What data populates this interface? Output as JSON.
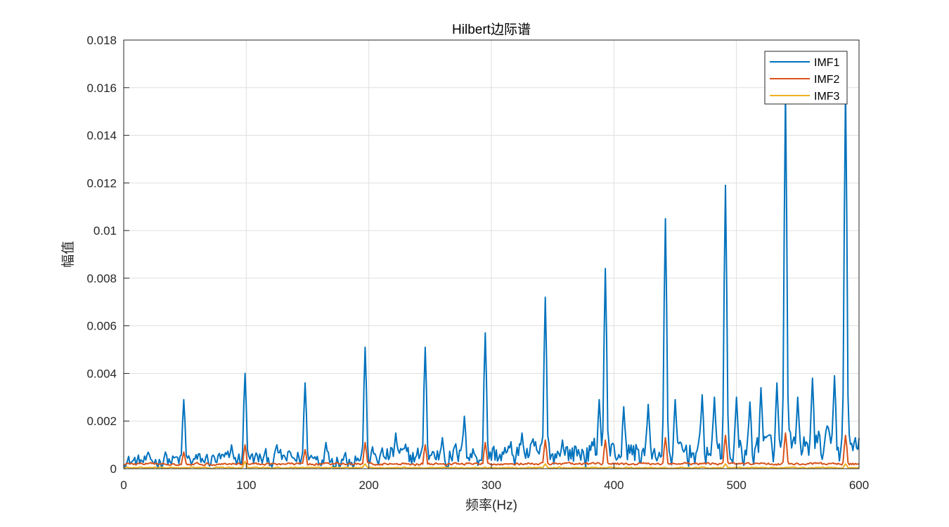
{
  "chart_data": {
    "type": "line",
    "title": "Hilbert边际谱",
    "xlabel": "频率(Hz)",
    "ylabel": "幅值",
    "xlim": [
      0,
      600
    ],
    "ylim": [
      0,
      0.018
    ],
    "xticks": [
      0,
      100,
      200,
      300,
      400,
      500,
      600
    ],
    "xtick_labels": [
      "0",
      "100",
      "200",
      "300",
      "400",
      "500",
      "600"
    ],
    "yticks": [
      0,
      0.002,
      0.004,
      0.006,
      0.008,
      0.01,
      0.012,
      0.014,
      0.016,
      0.018
    ],
    "ytick_labels": [
      "0",
      "0.002",
      "0.004",
      "0.006",
      "0.008",
      "0.01",
      "0.012",
      "0.014",
      "0.016",
      "0.018"
    ],
    "grid": true,
    "legend_position": "top-right",
    "series": [
      {
        "name": "IMF1",
        "color": "#0072BD",
        "base_level": 0.0005,
        "noise_level": 0.00045,
        "peaks": [
          {
            "x": 49,
            "y": 0.0029
          },
          {
            "x": 99,
            "y": 0.004
          },
          {
            "x": 148,
            "y": 0.0036
          },
          {
            "x": 197,
            "y": 0.0051
          },
          {
            "x": 246,
            "y": 0.0051
          },
          {
            "x": 295,
            "y": 0.0057
          },
          {
            "x": 344,
            "y": 0.0072
          },
          {
            "x": 393,
            "y": 0.0084
          },
          {
            "x": 442,
            "y": 0.0105
          },
          {
            "x": 491,
            "y": 0.0119
          },
          {
            "x": 540,
            "y": 0.0158
          },
          {
            "x": 589,
            "y": 0.016
          }
        ],
        "bumps": [
          {
            "x": 34,
            "y": 0.0007
          },
          {
            "x": 88,
            "y": 0.001
          },
          {
            "x": 125,
            "y": 0.001
          },
          {
            "x": 165,
            "y": 0.0011
          },
          {
            "x": 222,
            "y": 0.0015
          },
          {
            "x": 260,
            "y": 0.0013
          },
          {
            "x": 278,
            "y": 0.0022
          },
          {
            "x": 325,
            "y": 0.0015
          },
          {
            "x": 358,
            "y": 0.0012
          },
          {
            "x": 388,
            "y": 0.0029
          },
          {
            "x": 408,
            "y": 0.0026
          },
          {
            "x": 428,
            "y": 0.0027
          },
          {
            "x": 450,
            "y": 0.0029
          },
          {
            "x": 472,
            "y": 0.0031
          },
          {
            "x": 482,
            "y": 0.003
          },
          {
            "x": 500,
            "y": 0.003
          },
          {
            "x": 511,
            "y": 0.0028
          },
          {
            "x": 520,
            "y": 0.0034
          },
          {
            "x": 533,
            "y": 0.0036
          },
          {
            "x": 550,
            "y": 0.003
          },
          {
            "x": 562,
            "y": 0.0038
          },
          {
            "x": 580,
            "y": 0.0039
          },
          {
            "x": 597,
            "y": 0.0013
          }
        ]
      },
      {
        "name": "IMF2",
        "color": "#D95319",
        "base_level": 0.0002,
        "noise_level": 8e-05,
        "peaks": [
          {
            "x": 49,
            "y": 0.0007
          },
          {
            "x": 99,
            "y": 0.001
          },
          {
            "x": 148,
            "y": 0.0008
          },
          {
            "x": 197,
            "y": 0.0011
          },
          {
            "x": 246,
            "y": 0.001
          },
          {
            "x": 295,
            "y": 0.0011
          },
          {
            "x": 344,
            "y": 0.0012
          },
          {
            "x": 393,
            "y": 0.0012
          },
          {
            "x": 442,
            "y": 0.0013
          },
          {
            "x": 491,
            "y": 0.0014
          },
          {
            "x": 540,
            "y": 0.0015
          },
          {
            "x": 589,
            "y": 0.0014
          }
        ],
        "bumps": []
      },
      {
        "name": "IMF3",
        "color": "#EDB120",
        "base_level": 4e-05,
        "noise_level": 4e-05,
        "peaks": [
          {
            "x": 99,
            "y": 0.0003
          },
          {
            "x": 197,
            "y": 0.0002
          },
          {
            "x": 344,
            "y": 0.0002
          },
          {
            "x": 491,
            "y": 0.0002
          },
          {
            "x": 589,
            "y": 0.0002
          }
        ],
        "bumps": []
      }
    ]
  }
}
